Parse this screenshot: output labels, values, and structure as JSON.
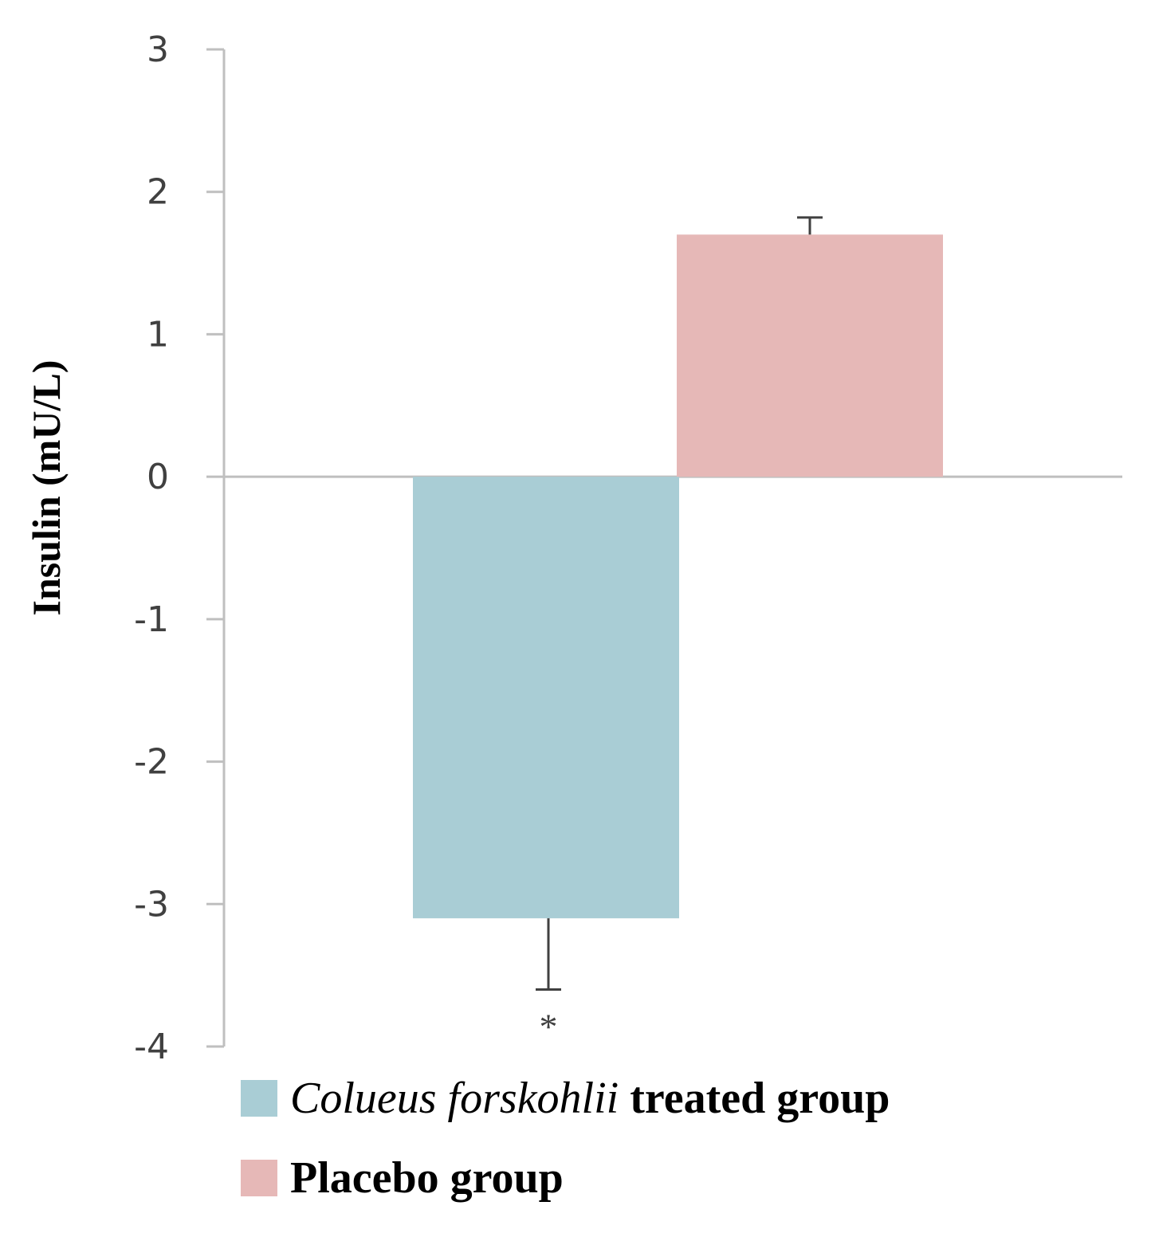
{
  "chart_data": {
    "type": "bar",
    "title": "",
    "xlabel": "",
    "ylabel": "Insulin (mU/L)",
    "ylim": [
      -4,
      3
    ],
    "yticks": [
      "3",
      "2",
      "1",
      "0",
      "-1",
      "-2",
      "-3",
      "-4"
    ],
    "ytick_values": [
      3,
      2,
      1,
      0,
      -1,
      -2,
      -3,
      -4
    ],
    "series": [
      {
        "name": "Colueus forskohlii treated group",
        "name_italic": "Colueus forskohlii",
        "name_rest": "treated group",
        "value": -3.1,
        "error": 0.5,
        "color": "#a9cdd5",
        "significance": "*"
      },
      {
        "name": "Placebo group",
        "value": 1.7,
        "error": 0.12,
        "color": "#e6b8b7",
        "significance": ""
      }
    ]
  },
  "colors": {
    "axis": "#bfbfbf",
    "error_bar": "#404040"
  }
}
